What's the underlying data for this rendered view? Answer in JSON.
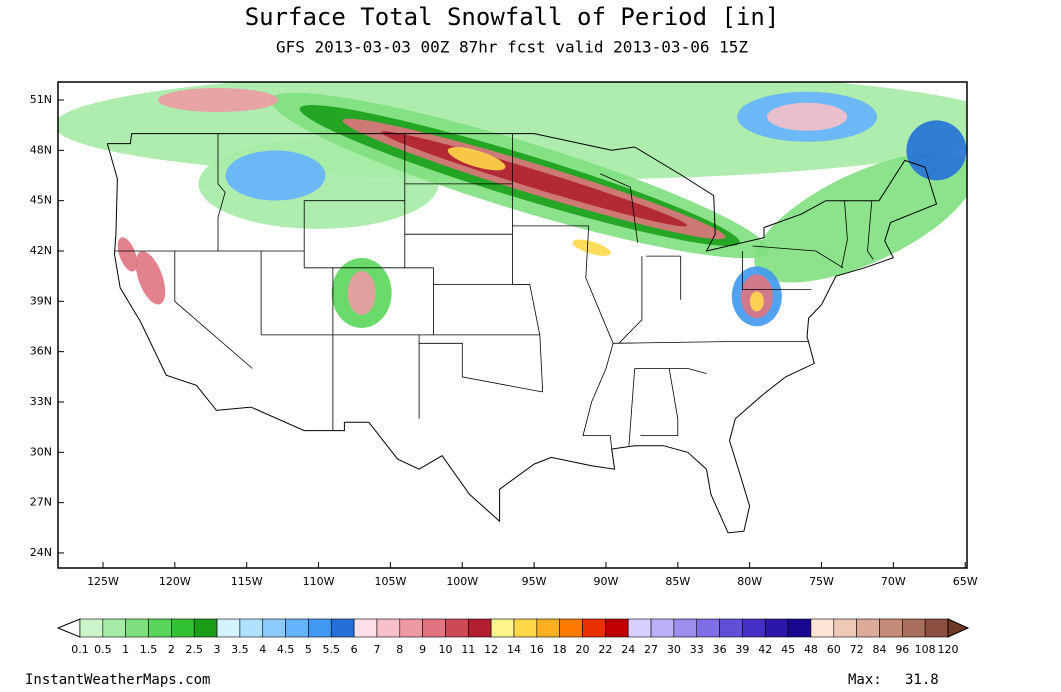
{
  "header": {
    "title": "Surface Total Snowfall of Period [in]",
    "subtitle": "GFS 2013-03-03 00Z 87hr fcst valid 2013-03-06 15Z"
  },
  "map": {
    "lat_labels": [
      "51N",
      "48N",
      "45N",
      "42N",
      "39N",
      "36N",
      "33N",
      "30N",
      "27N",
      "24N"
    ],
    "lon_labels": [
      "125W",
      "120W",
      "115W",
      "110W",
      "105W",
      "100W",
      "95W",
      "90W",
      "85W",
      "80W",
      "75W",
      "70W",
      "65W"
    ]
  },
  "legend": {
    "labels": [
      "0.1",
      "0.5",
      "1",
      "1.5",
      "2",
      "2.5",
      "3",
      "3.5",
      "4",
      "4.5",
      "5",
      "5.5",
      "6",
      "7",
      "8",
      "9",
      "10",
      "11",
      "12",
      "14",
      "16",
      "18",
      "20",
      "22",
      "24",
      "27",
      "30",
      "33",
      "36",
      "39",
      "42",
      "45",
      "48",
      "60",
      "72",
      "84",
      "96",
      "108",
      "120"
    ],
    "colors": [
      "#ccf5cc",
      "#a6eba6",
      "#80e080",
      "#5ad65a",
      "#33c233",
      "#1a9e1a",
      "#d5f2ff",
      "#b0e2ff",
      "#8ccbff",
      "#66b3ff",
      "#4098f0",
      "#2470d8",
      "#ffe0e8",
      "#f7c0c8",
      "#ee9aa4",
      "#e07480",
      "#cc4a56",
      "#b02030",
      "#fff58c",
      "#ffd84a",
      "#ffb020",
      "#ff7a00",
      "#e83000",
      "#c00000",
      "#d8d0ff",
      "#bab0f8",
      "#9c8ff0",
      "#7e6fe6",
      "#6050d8",
      "#4430c4",
      "#2c18a8",
      "#180890",
      "#ffe4d8",
      "#f0c8b8",
      "#dcaa98",
      "#c48c78",
      "#aa6e5c",
      "#8c5040"
    ],
    "under_color": "#ffffff",
    "over_color": "#6e3828"
  },
  "footer": {
    "source": "InstantWeatherMaps.com",
    "max_label": "Max:",
    "max_value": "31.8"
  }
}
